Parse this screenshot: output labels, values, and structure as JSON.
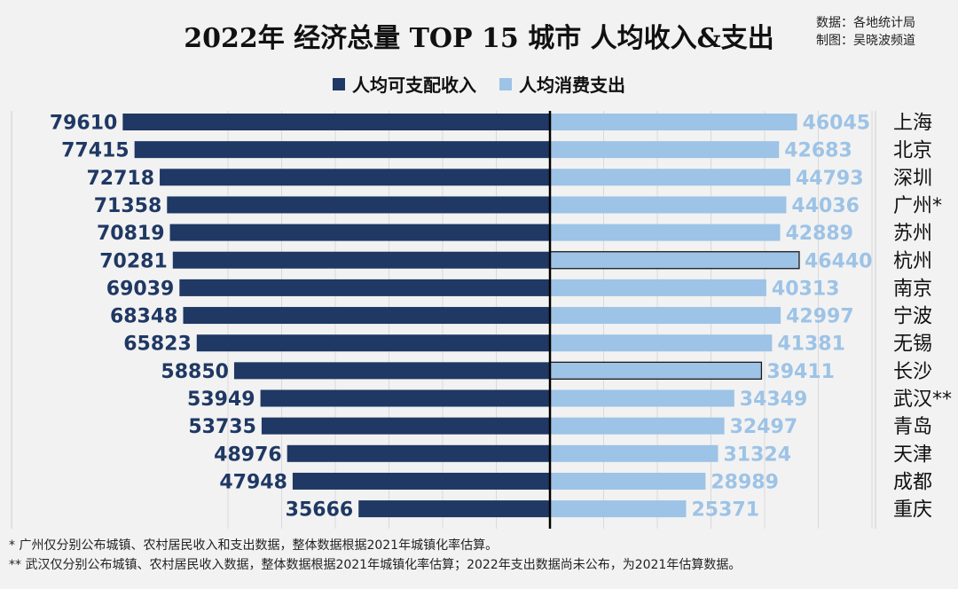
{
  "chart_data": {
    "type": "bar",
    "title": "2022年 经济总量 TOP 15 城市 人均收入&支出",
    "source_lines": [
      "数据：各地统计局",
      "制图：吴晓波频道"
    ],
    "categories": [
      "上海",
      "北京",
      "深圳",
      "广州*",
      "苏州",
      "杭州",
      "南京",
      "宁波",
      "无锡",
      "长沙",
      "武汉**",
      "青岛",
      "天津",
      "成都",
      "重庆"
    ],
    "series": [
      {
        "name": "人均可支配收入",
        "color": "#1f3864",
        "values": [
          79610,
          77415,
          72718,
          71358,
          70819,
          70281,
          69039,
          68348,
          65823,
          58850,
          53949,
          53735,
          48976,
          47948,
          35666
        ]
      },
      {
        "name": "人均消费支出",
        "color": "#9dc3e6",
        "values": [
          46045,
          42683,
          44793,
          44036,
          42889,
          46440,
          40313,
          42997,
          41381,
          39411,
          34349,
          32497,
          31324,
          28989,
          25371
        ]
      }
    ],
    "highlighted_rows": [
      "杭州",
      "长沙"
    ],
    "notes": [
      "* 广州仅分别公布城镇、农村居民收入和支出数据，整体数据根据2021年城镇化率估算。",
      "** 武汉仅分别公布城镇、农村居民收入数据，整体数据根据2021年城镇化率估算；2022年支出数据尚未公布，为2021年估算数据。"
    ]
  }
}
